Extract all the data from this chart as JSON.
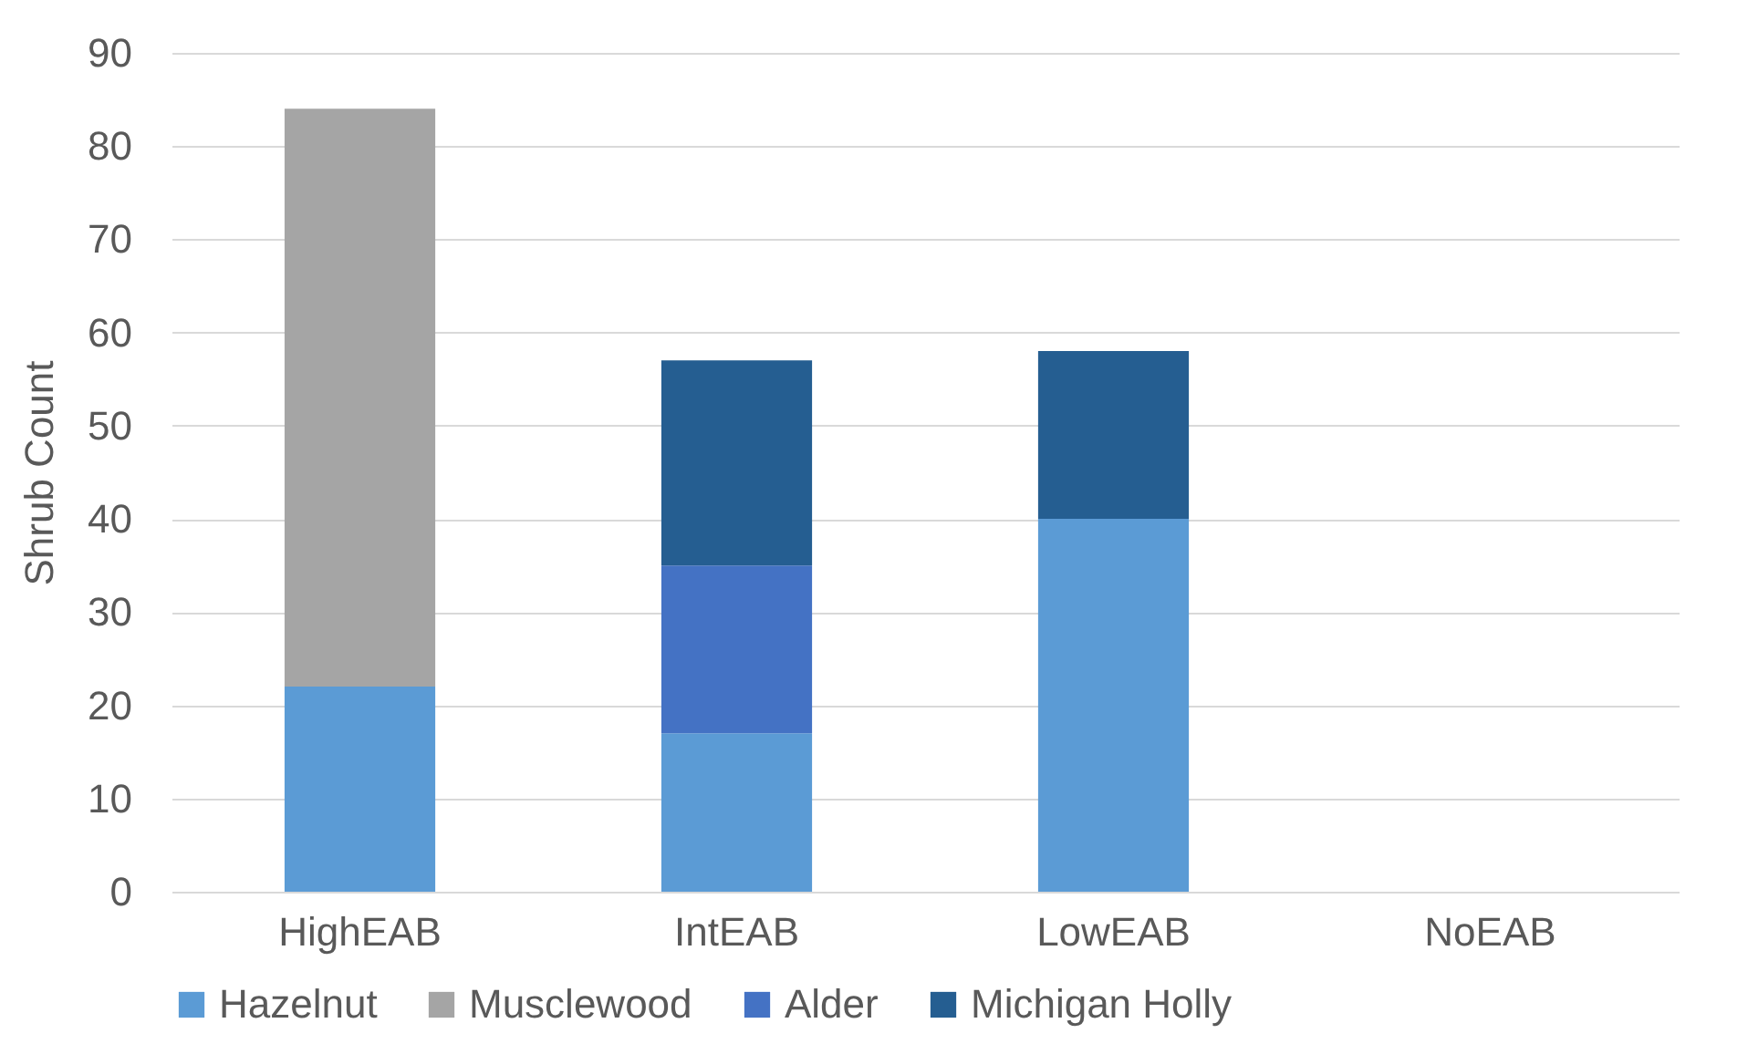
{
  "chart_data": {
    "type": "bar",
    "stacked": true,
    "ylabel": "Shrub Count",
    "categories": [
      "HighEAB",
      "IntEAB",
      "LowEAB",
      "NoEAB"
    ],
    "series": [
      {
        "name": "Hazelnut",
        "color": "#5b9bd5",
        "values": [
          22,
          17,
          40,
          null
        ]
      },
      {
        "name": "Musclewood",
        "color": "#a5a5a5",
        "values": [
          62,
          null,
          null,
          null
        ]
      },
      {
        "name": "Alder",
        "color": "#4472c4",
        "values": [
          null,
          18,
          null,
          null
        ]
      },
      {
        "name": "Michigan Holly",
        "color": "#255e91",
        "values": [
          null,
          22,
          18,
          null
        ]
      }
    ],
    "ylim": [
      0,
      90
    ],
    "yticks": [
      0,
      10,
      20,
      30,
      40,
      50,
      60,
      70,
      80,
      90
    ],
    "grid": "y",
    "legend": "bottom"
  }
}
